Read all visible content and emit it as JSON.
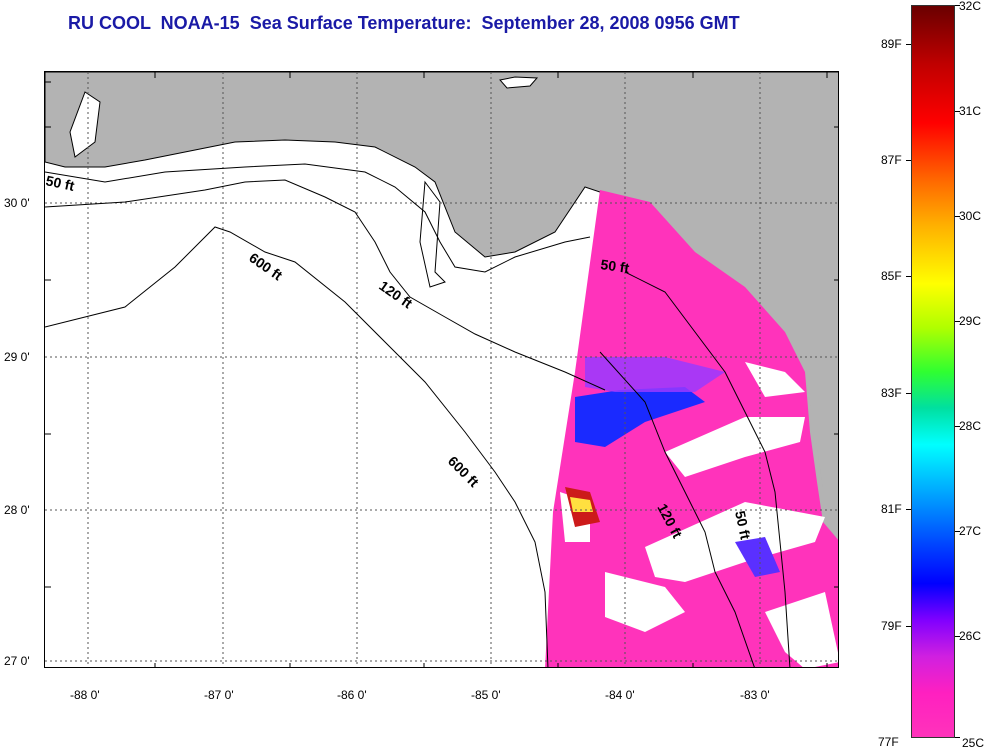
{
  "title": "RU COOL  NOAA-15  Sea Surface Temperature:  September 28, 2008 0956 GMT",
  "map": {
    "latitude_labels": [
      "30 0'",
      "29 0'",
      "28 0'",
      "27 0'"
    ],
    "longitude_labels": [
      "-88 0'",
      "-87 0'",
      "-86 0'",
      "-85 0'",
      "-84 0'",
      "-83 0'"
    ],
    "contour_labels": [
      "50 ft",
      "600 ft",
      "120 ft",
      "50 ft",
      "600 ft",
      "120 ft",
      "50 ft"
    ],
    "colors": {
      "land": "#b3b3b3",
      "water_warm": "#ff33bb",
      "water_cool": "#1a2aff",
      "no_data": "#ffffff"
    }
  },
  "colorbar": {
    "celsius_labels": [
      "32C",
      "31C",
      "30C",
      "29C",
      "28C",
      "27C",
      "26C",
      "25C"
    ],
    "fahrenheit_labels": [
      "89F",
      "87F",
      "85F",
      "83F",
      "81F",
      "79F",
      "77F"
    ]
  }
}
